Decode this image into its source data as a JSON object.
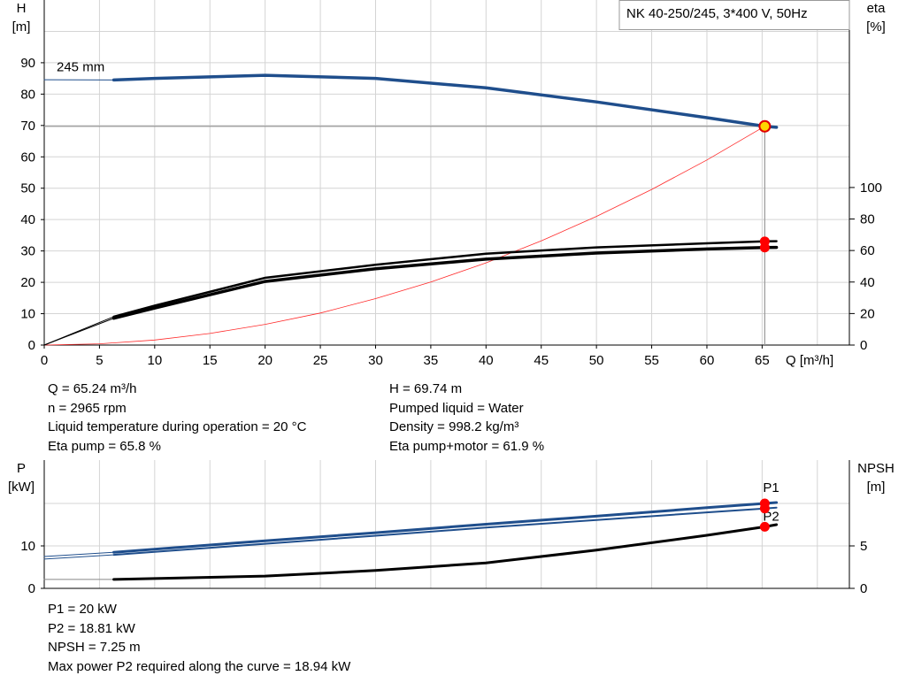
{
  "chart_data": [
    {
      "type": "line",
      "title": "NK 40-250/245, 3*400 V, 50Hz",
      "y_label": "H",
      "y_unit": "[m]",
      "y2_label": "eta",
      "y2_unit": "[%]",
      "x_label": "Q [m³/h]",
      "xlim": [
        0,
        72.9
      ],
      "xticks": [
        0,
        5,
        10,
        15,
        20,
        25,
        30,
        35,
        40,
        45,
        50,
        55,
        60,
        65
      ],
      "xgrid": [
        0,
        5,
        10,
        15,
        20,
        25,
        30,
        35,
        40,
        45,
        50,
        55,
        60,
        65,
        70
      ],
      "ylim": [
        0,
        110
      ],
      "yticks": [
        0,
        10,
        20,
        30,
        40,
        50,
        60,
        70,
        80,
        90
      ],
      "ygrid": [
        0,
        10,
        20,
        30,
        40,
        50,
        60,
        70,
        80,
        90,
        100
      ],
      "y2lim": [
        0,
        219
      ],
      "y2ticks": [
        0,
        20,
        40,
        60,
        80,
        100
      ],
      "series": [
        {
          "color": "#1f4e8c",
          "width": 1,
          "x": [
            0,
            6.3
          ],
          "values": [
            84.6,
            84.5
          ]
        },
        {
          "color": "#1f4e8c",
          "width": 3.5,
          "label": "245 mm",
          "x": [
            6.3,
            10,
            20,
            30,
            40,
            50,
            60,
            65.24,
            66.3
          ],
          "values": [
            84.5,
            85,
            86,
            85,
            82,
            77.5,
            72.5,
            69.74,
            69.4
          ]
        },
        {
          "color": "#ff2a2a",
          "width": 0.8,
          "x": [
            0,
            5,
            10,
            15,
            20,
            25,
            30,
            35,
            40,
            45,
            50,
            55,
            60,
            65.24
          ],
          "values": [
            0,
            0.4,
            1.6,
            3.7,
            6.6,
            10.2,
            14.8,
            20.1,
            26.2,
            33.2,
            41,
            49.6,
            59,
            69.74
          ]
        },
        {
          "color": "#000000",
          "width": 1,
          "axis": "y2",
          "x": [
            0,
            6.3
          ],
          "values": [
            0,
            18
          ]
        },
        {
          "color": "#000000",
          "width": 2.5,
          "axis": "y2",
          "x": [
            6.3,
            10,
            20,
            30,
            40,
            50,
            60,
            65.24,
            66.3
          ],
          "values": [
            18,
            25,
            42.7,
            51,
            58,
            62,
            64.6,
            65.8,
            65.9
          ]
        },
        {
          "color": "#000000",
          "width": 1,
          "axis": "y2",
          "x": [
            0,
            6.3
          ],
          "values": [
            0,
            17
          ]
        },
        {
          "color": "#000000",
          "width": 3.5,
          "axis": "y2",
          "x": [
            6.3,
            10,
            20,
            30,
            40,
            50,
            60,
            65.24,
            66.3
          ],
          "values": [
            17,
            23.5,
            40.4,
            48.4,
            54.5,
            58.4,
            61,
            61.9,
            62
          ]
        }
      ],
      "markers": [
        {
          "x": 65.24,
          "y": 65.8,
          "axis": "y2",
          "color": "#ff0000"
        },
        {
          "x": 65.24,
          "y": 61.9,
          "axis": "y2",
          "color": "#ff0000"
        },
        {
          "x": 65.24,
          "y": 69.74,
          "color": "#ffd700",
          "stroke": "#e00000",
          "guide": true
        }
      ]
    },
    {
      "type": "line",
      "y_label": "P",
      "y_unit": "[kW]",
      "y2_label": "NPSH",
      "y2_unit": "[m]",
      "xlim": [
        0,
        72.9
      ],
      "xgrid": [
        0,
        5,
        10,
        15,
        20,
        25,
        30,
        35,
        40,
        45,
        50,
        55,
        60,
        65,
        70
      ],
      "ylim": [
        0,
        30.2
      ],
      "yticks": [
        0,
        10
      ],
      "ygrid": [
        0,
        10,
        20
      ],
      "y2lim": [
        0,
        15.1
      ],
      "y2ticks": [
        0,
        5
      ],
      "series": [
        {
          "color": "#1f4e8c",
          "width": 1,
          "x": [
            0,
            6.3
          ],
          "values": [
            7.5,
            8.5
          ]
        },
        {
          "color": "#1f4e8c",
          "width": 3,
          "label": "P1",
          "x": [
            6.3,
            20,
            30,
            40,
            50,
            60,
            65.24,
            66.3
          ],
          "values": [
            8.5,
            11.2,
            13.1,
            15.1,
            17,
            19,
            20,
            20.2
          ]
        },
        {
          "color": "#1f4e8c",
          "width": 1,
          "x": [
            0,
            6.3
          ],
          "values": [
            6.9,
            7.9
          ]
        },
        {
          "color": "#1f4e8c",
          "width": 2,
          "label": "P2",
          "x": [
            6.3,
            20,
            30,
            40,
            50,
            60,
            65.24,
            66.3
          ],
          "values": [
            7.9,
            10.5,
            12.4,
            14.3,
            16.1,
            17.9,
            18.81,
            19
          ]
        },
        {
          "color": "#888888",
          "width": 1,
          "axis": "y2",
          "x": [
            0,
            6.3
          ],
          "values": [
            1.05,
            1.05
          ]
        },
        {
          "color": "#000000",
          "width": 3,
          "axis": "y2",
          "x": [
            6.3,
            20,
            30,
            40,
            50,
            60,
            65.24,
            66.3
          ],
          "values": [
            1.05,
            1.45,
            2.1,
            3,
            4.5,
            6.25,
            7.25,
            7.5
          ]
        }
      ],
      "markers": [
        {
          "x": 65.24,
          "y": 20,
          "color": "#ff0000"
        },
        {
          "x": 65.24,
          "y": 18.81,
          "color": "#ff0000"
        },
        {
          "x": 65.24,
          "y": 7.25,
          "axis": "y2",
          "color": "#ff0000"
        }
      ]
    }
  ],
  "info_top": {
    "left": [
      "Q = 65.24 m³/h",
      "n = 2965 rpm",
      "Liquid temperature during operation = 20 °C",
      "Eta pump = 65.8 %"
    ],
    "right": [
      "H = 69.74 m",
      "Pumped liquid = Water",
      "Density = 998.2 kg/m³",
      "Eta pump+motor = 61.9 %"
    ]
  },
  "info_bottom": [
    "P1 = 20 kW",
    "P2 = 18.81 kW",
    "NPSH = 7.25 m",
    "Max power P2 required along the curve = 18.94 kW"
  ]
}
